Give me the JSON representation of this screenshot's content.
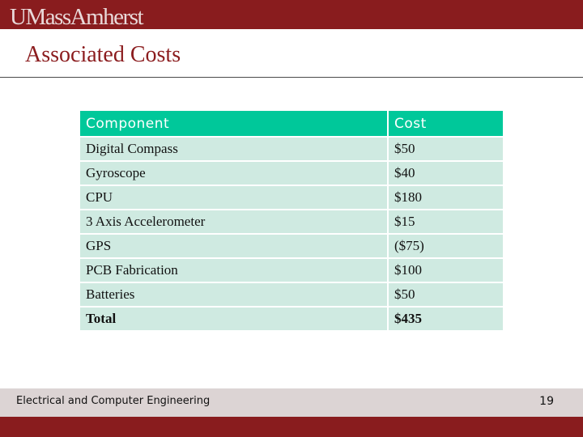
{
  "header": {
    "logo_text": "UMassAmherst"
  },
  "slide": {
    "title": "Associated Costs"
  },
  "table": {
    "headers": [
      "Component",
      "Cost"
    ],
    "rows": [
      [
        "Digital Compass",
        "$50"
      ],
      [
        "Gyroscope",
        "$40"
      ],
      [
        "CPU",
        "$180"
      ],
      [
        "3 Axis Accelerometer",
        "$15"
      ],
      [
        "GPS",
        "($75)"
      ],
      [
        "PCB Fabrication",
        "$100"
      ],
      [
        "Batteries",
        "$50"
      ],
      [
        "Total",
        "$435"
      ]
    ]
  },
  "footer": {
    "department": "Electrical and Computer Engineering",
    "page_number": "19"
  },
  "colors": {
    "brand_maroon": "#891c1e",
    "table_header": "#00c89a",
    "table_row": "#cfeae1",
    "footer_bar": "#dcd4d4"
  }
}
